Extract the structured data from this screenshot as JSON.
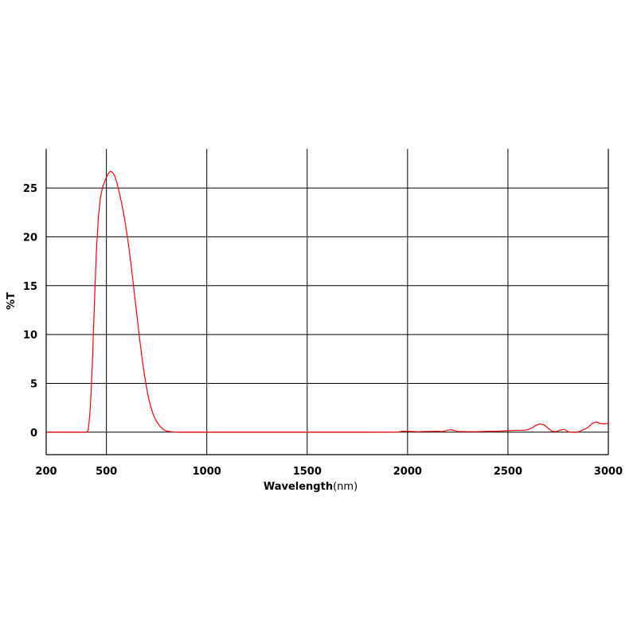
{
  "chart_data": {
    "type": "line",
    "title": "",
    "xlabel": "Wavelength",
    "xlabel_unit": "(nm)",
    "ylabel": "%T",
    "xlim": [
      200,
      3000
    ],
    "ylim": [
      -2.3,
      29
    ],
    "x_ticks": [
      200,
      500,
      1000,
      1500,
      2000,
      2500,
      3000
    ],
    "y_ticks": [
      0,
      5,
      10,
      15,
      20,
      25
    ],
    "grid": true,
    "line_color": "#ff0000",
    "series": [
      {
        "x": [
          200,
          300,
          380,
          400,
          410,
          420,
          430,
          440,
          450,
          460,
          470,
          480,
          490,
          500,
          510,
          520,
          530,
          540,
          550,
          560,
          570,
          580,
          590,
          600,
          610,
          620,
          630,
          640,
          650,
          660,
          670,
          680,
          690,
          700,
          710,
          720,
          730,
          740,
          750,
          760,
          770,
          780,
          790,
          800,
          820,
          840,
          860,
          880,
          900,
          1000,
          1200,
          1400,
          1600,
          1800,
          1950,
          1975,
          2000,
          2050,
          2100,
          2150,
          2170,
          2200,
          2220,
          2250,
          2300,
          2350,
          2400,
          2450,
          2500,
          2550,
          2580,
          2600,
          2620,
          2640,
          2660,
          2680,
          2700,
          2720,
          2740,
          2760,
          2780,
          2800,
          2820,
          2840,
          2860,
          2880,
          2900,
          2920,
          2940,
          2960,
          2980,
          3000
        ],
        "values": [
          0,
          0,
          0,
          0,
          0.2,
          2.5,
          7,
          13,
          18.5,
          22,
          24,
          25,
          25.6,
          26.1,
          26.5,
          26.7,
          26.6,
          26.3,
          25.7,
          24.9,
          24,
          23,
          21.9,
          20.6,
          19.2,
          17.6,
          15.9,
          14.1,
          12.3,
          10.5,
          8.8,
          7.2,
          5.8,
          4.6,
          3.5,
          2.7,
          2,
          1.5,
          1.1,
          0.8,
          0.55,
          0.35,
          0.2,
          0.12,
          0.05,
          0.02,
          0.01,
          0,
          0,
          0,
          0,
          0,
          0,
          0,
          0.02,
          0.1,
          0.1,
          0.05,
          0.08,
          0.1,
          0.05,
          0.2,
          0.25,
          0.08,
          0.05,
          0.05,
          0.1,
          0.1,
          0.15,
          0.2,
          0.2,
          0.25,
          0.45,
          0.7,
          0.85,
          0.75,
          0.4,
          0.1,
          0.05,
          0.2,
          0.3,
          0.05,
          0,
          0,
          0.1,
          0.3,
          0.5,
          0.9,
          1.05,
          0.9,
          0.85,
          0.9
        ]
      }
    ]
  }
}
